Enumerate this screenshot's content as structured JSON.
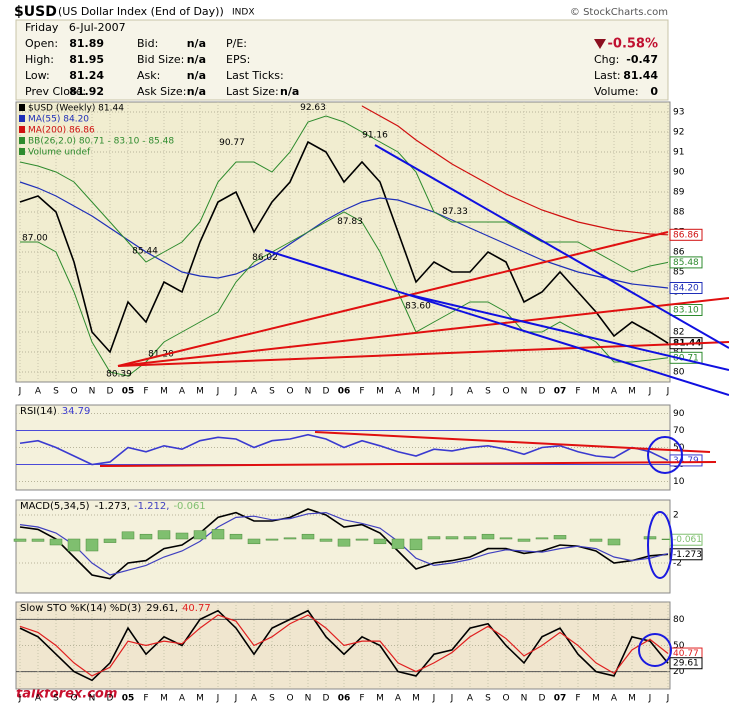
{
  "header": {
    "symbol": "$USD",
    "name": "(US Dollar Index (End of Day))",
    "exchange": "INDX",
    "copyright": "© StockCharts.com",
    "date": "Friday   6-Jul-2007",
    "quote": [
      {
        "label": "Open:",
        "value": "81.89"
      },
      {
        "label": "High:",
        "value": "81.95"
      },
      {
        "label": "Low:",
        "value": "81.24"
      },
      {
        "label": "Prev Close:",
        "value": "81.92"
      }
    ],
    "bid": [
      {
        "label": "Bid:",
        "value": "n/a"
      },
      {
        "label": "Bid Size:",
        "value": "n/a"
      },
      {
        "label": "Ask:",
        "value": "n/a"
      },
      {
        "label": "Ask Size:",
        "value": "n/a"
      }
    ],
    "fundamentals": [
      {
        "label": "P/E:"
      },
      {
        "label": "EPS:"
      },
      {
        "label": "Last Ticks:"
      },
      {
        "label": "Last Size:",
        "value": "n/a"
      }
    ],
    "summary": {
      "change_pct": "-0.58%",
      "items": [
        {
          "label": "Chg:",
          "value": "-0.47"
        },
        {
          "label": "Last:",
          "value": "81.44"
        },
        {
          "label": "Volume:",
          "value": "0"
        }
      ]
    },
    "watermark": "talkforex.com"
  },
  "chart_data": [
    {
      "type": "line",
      "categories": [
        "J",
        "A",
        "S",
        "O",
        "N",
        "D",
        "05",
        "F",
        "M",
        "A",
        "M",
        "J",
        "J",
        "A",
        "S",
        "O",
        "N",
        "D",
        "06",
        "F",
        "M",
        "A",
        "M",
        "J",
        "J",
        "A",
        "S",
        "O",
        "N",
        "D",
        "07",
        "F",
        "M",
        "A",
        "M",
        "J",
        "J"
      ],
      "ylim": [
        79.5,
        93.5
      ],
      "yticks": [
        80,
        81,
        82,
        83,
        84,
        85,
        86,
        87,
        88,
        89,
        90,
        91,
        92,
        93
      ],
      "grid": true,
      "series": [
        {
          "name": "$USD (Weekly) 81.44",
          "color": "#000000",
          "values": [
            88.5,
            88.8,
            88.0,
            85.5,
            82.0,
            81.0,
            83.5,
            82.5,
            84.5,
            84.0,
            86.5,
            88.5,
            89.0,
            87.0,
            88.5,
            89.5,
            91.5,
            91.0,
            89.5,
            90.5,
            89.5,
            87.0,
            84.5,
            85.5,
            85.0,
            85.0,
            86.0,
            85.5,
            83.5,
            84.0,
            85.0,
            84.0,
            83.0,
            81.8,
            82.5,
            82.0,
            81.44
          ]
        },
        {
          "name": "MA(55) 84.20",
          "color": "#1f2fb8",
          "values": [
            89.5,
            89.2,
            88.8,
            88.3,
            87.8,
            87.2,
            86.6,
            86.0,
            85.5,
            85.0,
            84.8,
            84.7,
            84.9,
            85.3,
            85.8,
            86.4,
            87.0,
            87.6,
            88.1,
            88.5,
            88.7,
            88.6,
            88.3,
            88.0,
            87.6,
            87.2,
            86.8,
            86.4,
            86.0,
            85.6,
            85.3,
            85.0,
            84.8,
            84.6,
            84.4,
            84.3,
            84.2
          ]
        },
        {
          "name": "MA(200) 86.86",
          "color": "#d01010",
          "values": [
            null,
            null,
            null,
            null,
            null,
            null,
            null,
            null,
            null,
            null,
            null,
            null,
            null,
            null,
            null,
            null,
            null,
            null,
            null,
            93.3,
            92.8,
            92.3,
            91.6,
            91.0,
            90.4,
            89.9,
            89.4,
            88.9,
            88.5,
            88.1,
            87.8,
            87.5,
            87.3,
            87.1,
            87.0,
            86.9,
            86.86
          ]
        },
        {
          "name": "BB(26,2.0) 80.71 - 83.10 - 85.48",
          "color": "#2e8b2e",
          "upper": [
            90.5,
            90.3,
            90.0,
            89.5,
            88.5,
            87.5,
            86.5,
            85.5,
            86.0,
            86.5,
            87.5,
            89.5,
            90.5,
            90.5,
            90.0,
            91.0,
            92.5,
            92.8,
            92.5,
            92.0,
            91.5,
            91.0,
            90.0,
            88.0,
            87.5,
            87.5,
            87.5,
            87.5,
            87.0,
            86.5,
            86.5,
            86.5,
            86.0,
            85.5,
            85.0,
            85.3,
            85.48
          ],
          "lower": [
            86.5,
            86.5,
            86.0,
            84.0,
            81.5,
            80.0,
            79.8,
            80.5,
            81.5,
            82.0,
            82.5,
            83.0,
            84.5,
            85.5,
            86.0,
            86.5,
            87.0,
            87.5,
            88.0,
            87.5,
            86.0,
            84.0,
            82.0,
            82.5,
            83.0,
            83.5,
            83.5,
            83.0,
            82.0,
            82.0,
            82.5,
            82.0,
            81.5,
            80.5,
            80.5,
            80.6,
            80.71
          ]
        }
      ],
      "legend_extra": "Volume undef",
      "annotations": [
        {
          "value": 87.0,
          "label": "87.00"
        },
        {
          "value": 85.44,
          "label": "85.44"
        },
        {
          "value": 90.77,
          "label": "90.77"
        },
        {
          "value": 80.39,
          "label": "80.39"
        },
        {
          "value": 81.2,
          "label": "81.20"
        },
        {
          "value": 92.63,
          "label": "92.63"
        },
        {
          "value": 86.02,
          "label": "86.02"
        },
        {
          "value": 87.83,
          "label": "87.83"
        },
        {
          "value": 91.16,
          "label": "91.16"
        },
        {
          "value": 83.6,
          "label": "83.60"
        },
        {
          "value": 87.33,
          "label": "87.33"
        }
      ],
      "value_tags": [
        {
          "value": 86.86,
          "label": "86.86",
          "color": "#d01010"
        },
        {
          "value": 85.48,
          "label": "85.48",
          "color": "#2e8b2e"
        },
        {
          "value": 84.2,
          "label": "84.20",
          "color": "#1f2fb8"
        },
        {
          "value": 83.1,
          "label": "83.10",
          "color": "#2e8b2e"
        },
        {
          "value": 81.44,
          "label": "81.44",
          "color": "#000000"
        },
        {
          "value": 80.71,
          "label": "80.71",
          "color": "#2e8b2e"
        }
      ]
    },
    {
      "type": "line",
      "title": "RSI(14)",
      "ylim": [
        0,
        100
      ],
      "yticks": [
        90,
        70,
        50,
        30,
        10
      ],
      "bands": [
        70,
        30
      ],
      "series": [
        {
          "name": "34.79",
          "color": "#3a3ad0",
          "values": [
            55,
            58,
            50,
            40,
            30,
            33,
            50,
            45,
            52,
            48,
            58,
            62,
            60,
            50,
            58,
            60,
            65,
            60,
            50,
            58,
            52,
            45,
            40,
            48,
            46,
            50,
            52,
            48,
            42,
            50,
            52,
            45,
            40,
            38,
            50,
            45,
            34.79
          ]
        }
      ],
      "value_tags": [
        {
          "value": 34.79,
          "label": "34.79",
          "color": "#3a3ad0"
        }
      ]
    },
    {
      "type": "line",
      "title": "MACD(5,34,5)",
      "ylim": [
        -4.5,
        3.25
      ],
      "yticks": [
        2,
        -2
      ],
      "series": [
        {
          "name": "-1.273,",
          "color": "#000000",
          "values": [
            1.0,
            0.8,
            0,
            -1.5,
            -3.0,
            -3.3,
            -2.0,
            -1.8,
            -0.8,
            -0.5,
            0.5,
            1.8,
            2.2,
            1.5,
            1.5,
            1.8,
            2.5,
            2.0,
            1.0,
            1.2,
            0.5,
            -1.0,
            -2.5,
            -2.0,
            -1.8,
            -1.5,
            -0.8,
            -0.8,
            -1.2,
            -1.0,
            -0.5,
            -0.6,
            -1.0,
            -2.0,
            -1.8,
            -1.4,
            -1.273
          ]
        },
        {
          "name": "-1.212,",
          "color": "#4040c0",
          "values": [
            1.2,
            1.0,
            0.5,
            -0.5,
            -2.0,
            -3.0,
            -2.6,
            -2.2,
            -1.5,
            -1.0,
            -0.2,
            1.0,
            1.8,
            1.9,
            1.6,
            1.7,
            2.1,
            2.2,
            1.6,
            1.3,
            0.9,
            -0.2,
            -1.6,
            -2.2,
            -2.0,
            -1.7,
            -1.2,
            -0.9,
            -1.0,
            -1.1,
            -0.8,
            -0.6,
            -0.8,
            -1.5,
            -1.8,
            -1.6,
            -1.212
          ]
        },
        {
          "name": "-0.061",
          "color": "#7fbf6f",
          "kind": "histogram",
          "values": [
            -0.2,
            -0.2,
            -0.5,
            -1.0,
            -1.0,
            -0.3,
            0.6,
            0.4,
            0.7,
            0.5,
            0.7,
            0.8,
            0.4,
            -0.4,
            -0.1,
            0.1,
            0.4,
            -0.2,
            -0.6,
            -0.1,
            -0.4,
            -0.8,
            -0.9,
            0.2,
            0.2,
            0.2,
            0.4,
            0.1,
            -0.2,
            0.1,
            0.3,
            0,
            -0.2,
            -0.5,
            0,
            0.2,
            -0.061
          ]
        }
      ],
      "value_tags": [
        {
          "value": -0.061,
          "label": "-0.061",
          "color": "#7fbf6f"
        },
        {
          "value": -1.273,
          "label": "-1.273",
          "color": "#000000"
        }
      ]
    },
    {
      "type": "line",
      "title": "Slow STO %K(14) %D(3)",
      "ylim": [
        0,
        100
      ],
      "yticks": [
        80,
        50,
        20
      ],
      "bands": [
        80,
        20
      ],
      "categories": [
        "J",
        "A",
        "S",
        "O",
        "N",
        "D",
        "05",
        "F",
        "M",
        "A",
        "M",
        "J",
        "J",
        "A",
        "S",
        "O",
        "N",
        "D",
        "06",
        "F",
        "M",
        "A",
        "M",
        "J",
        "J",
        "A",
        "S",
        "O",
        "N",
        "D",
        "07",
        "F",
        "M",
        "A",
        "M",
        "J",
        "J"
      ],
      "series": [
        {
          "name": "29.61,",
          "color": "#000000",
          "values": [
            70,
            60,
            40,
            20,
            10,
            30,
            70,
            40,
            60,
            50,
            80,
            90,
            70,
            40,
            70,
            80,
            90,
            60,
            40,
            60,
            50,
            20,
            15,
            40,
            45,
            70,
            75,
            50,
            30,
            60,
            70,
            40,
            20,
            15,
            60,
            55,
            29.61
          ]
        },
        {
          "name": "40.77",
          "color": "#e02020",
          "values": [
            72,
            65,
            50,
            30,
            15,
            25,
            55,
            50,
            55,
            52,
            70,
            85,
            78,
            50,
            60,
            75,
            85,
            70,
            50,
            55,
            55,
            30,
            20,
            30,
            42,
            60,
            72,
            58,
            38,
            50,
            65,
            50,
            30,
            18,
            45,
            57,
            40.77
          ]
        }
      ],
      "value_tags": [
        {
          "value": 40.77,
          "label": "40.77",
          "color": "#e02020"
        },
        {
          "value": 29.61,
          "label": "29.61",
          "color": "#000000"
        }
      ]
    }
  ]
}
